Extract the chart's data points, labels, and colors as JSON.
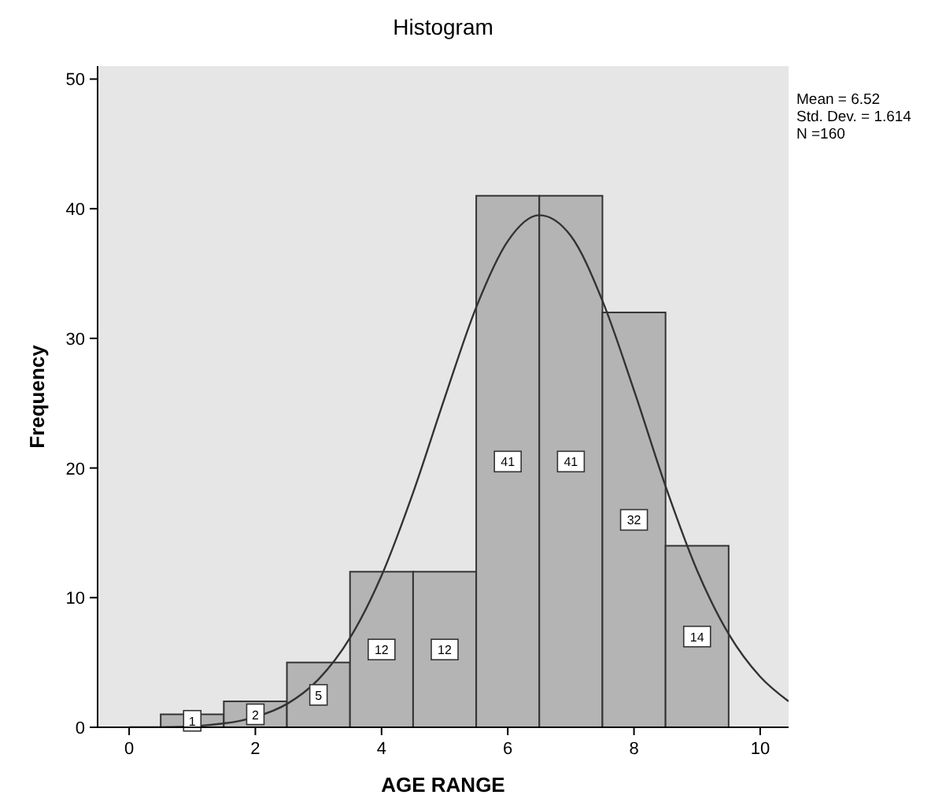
{
  "chart_data": {
    "type": "histogram",
    "title": "Histogram",
    "xlabel": "AGE RANGE",
    "ylabel": "Frequency",
    "bins": [
      0.5,
      1.5,
      2.5,
      3.5,
      4.5,
      5.5,
      6.5,
      7.5,
      8.5,
      9.5
    ],
    "values": [
      1,
      2,
      5,
      12,
      12,
      41,
      41,
      32,
      14
    ],
    "color": "#b4b4b4",
    "value_labels": [
      "1",
      "2",
      "5",
      "12",
      "12",
      "41",
      "41",
      "32",
      "14"
    ],
    "series": [
      {
        "type": "line",
        "color": "#333333",
        "x": [
          0,
          0.5,
          1,
          1.5,
          2,
          2.5,
          3,
          3.5,
          4,
          4.5,
          5,
          5.5,
          6,
          6.5,
          7,
          7.5,
          8,
          8.5,
          9,
          9.5,
          10,
          10.45
        ],
        "values": [
          0,
          0,
          null,
          0.3,
          0.8,
          1.8,
          3.7,
          6.9,
          11.7,
          18.1,
          25.4,
          32.4,
          37.5,
          39.5,
          37.9,
          32.9,
          26,
          18.6,
          12.1,
          7.2,
          3.9,
          2
        ]
      }
    ],
    "xlim": [
      -0.5,
      10.45
    ],
    "xticks": [
      0,
      2,
      4,
      6,
      8,
      10
    ],
    "ylim": [
      0,
      51
    ],
    "yticks": [
      0,
      10,
      20,
      30,
      40,
      50
    ],
    "grid": false,
    "marker": "none",
    "line_style": "solid",
    "annotations": [
      "Mean = 6.52",
      "Std. Dev. = 1.614",
      "N =160"
    ]
  }
}
